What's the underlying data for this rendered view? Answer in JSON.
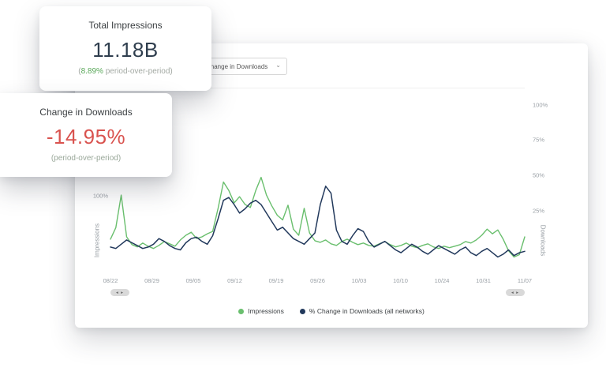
{
  "cards": {
    "total_impressions": {
      "title": "Total Impressions",
      "value": "11.18B",
      "sub_open": "(",
      "delta": "8.89%",
      "sub_rest": " period-over-period)"
    },
    "change_in_downloads": {
      "title": "Change in Downloads",
      "value": "-14.95%",
      "subtitle": "(period-over-period)"
    }
  },
  "panel": {
    "dropdown": {
      "value": "Change in Downloads"
    },
    "scrollbar": {
      "left": "◂ ▸",
      "right": "◂ ▸"
    }
  },
  "icons": {
    "caret_down": "⌄"
  },
  "colors": {
    "green": "#6abf6e",
    "navy": "#22395c",
    "red": "#d9534f",
    "muted": "#9aa0a6"
  },
  "chart_data": {
    "type": "line",
    "x_labels": [
      "08/22",
      "08/29",
      "09/05",
      "09/12",
      "09/19",
      "09/26",
      "10/03",
      "10/10",
      "10/24",
      "10/31",
      "11/07"
    ],
    "axes": {
      "left": {
        "label": "Impressions",
        "range": [
          0,
          240
        ],
        "ticks": [
          {
            "label": "100%",
            "value": 100
          }
        ]
      },
      "right": {
        "label": "Downloads",
        "range": [
          -19,
          112
        ],
        "ticks": [
          {
            "label": "100%",
            "value": 100
          },
          {
            "label": "75%",
            "value": 75
          },
          {
            "label": "50%",
            "value": 50
          },
          {
            "label": "25%",
            "value": 25
          }
        ]
      }
    },
    "series": [
      {
        "name": "Impressions",
        "axis": "left",
        "color": "#6abf6e",
        "values": [
          45,
          60,
          102,
          48,
          38,
          35,
          40,
          36,
          33,
          37,
          42,
          39,
          36,
          44,
          50,
          54,
          46,
          48,
          52,
          55,
          85,
          119,
          108,
          92,
          100,
          90,
          86,
          108,
          125,
          102,
          88,
          76,
          70,
          89,
          58,
          50,
          85,
          53,
          43,
          41,
          44,
          39,
          37,
          42,
          45,
          41,
          38,
          40,
          37,
          36,
          39,
          42,
          38,
          35,
          37,
          40,
          36,
          34,
          37,
          39,
          35,
          33,
          36,
          34,
          36,
          38,
          42,
          40,
          44,
          50,
          58,
          52,
          57,
          45,
          30,
          22,
          25,
          48
        ]
      },
      {
        "name": "% Change in Downloads (all networks)",
        "axis": "right",
        "color": "#22395c",
        "values": [
          0,
          -1,
          2,
          5,
          3,
          1,
          -1,
          0,
          2,
          6,
          4,
          1,
          -1,
          -2,
          3,
          6,
          7,
          4,
          2,
          8,
          20,
          33,
          35,
          30,
          24,
          27,
          31,
          33,
          30,
          24,
          18,
          12,
          14,
          10,
          6,
          4,
          2,
          6,
          10,
          30,
          43,
          38,
          12,
          4,
          2,
          8,
          13,
          11,
          4,
          0,
          2,
          4,
          1,
          -2,
          -4,
          -1,
          2,
          0,
          -3,
          -5,
          -2,
          1,
          -1,
          -3,
          -5,
          -2,
          0,
          -4,
          -6,
          -3,
          -1,
          -4,
          -7,
          -5,
          -2,
          -6,
          -4,
          -3
        ]
      }
    ],
    "legend_position": "bottom"
  }
}
